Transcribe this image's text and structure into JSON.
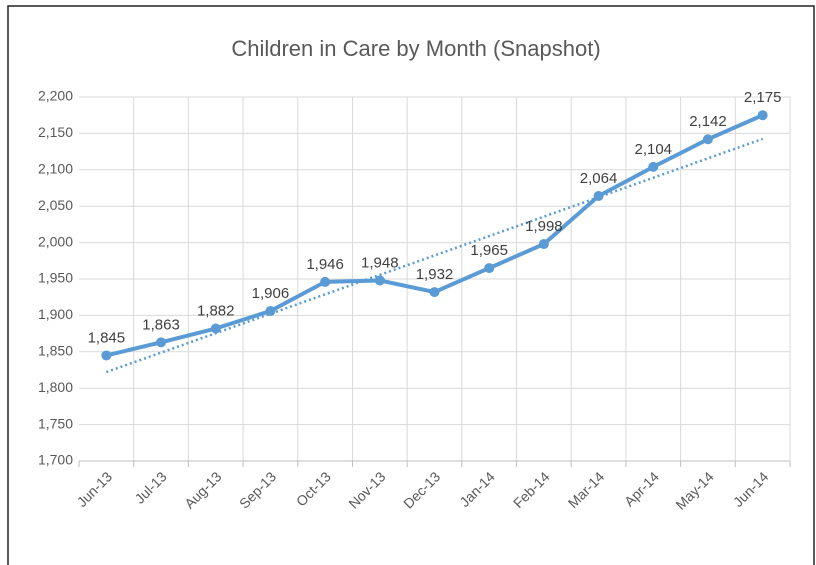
{
  "chart_data": {
    "type": "line",
    "title": "Children in Care by Month (Snapshot)",
    "categories": [
      "Jun-13",
      "Jul-13",
      "Aug-13",
      "Sep-13",
      "Oct-13",
      "Nov-13",
      "Dec-13",
      "Jan-14",
      "Feb-14",
      "Mar-14",
      "Apr-14",
      "May-14",
      "Jun-14"
    ],
    "series": [
      {
        "name": "Children in Care",
        "color": "#5b9bd5",
        "values": [
          1845,
          1863,
          1882,
          1906,
          1946,
          1948,
          1932,
          1965,
          1998,
          2064,
          2104,
          2142,
          2175
        ],
        "value_labels": [
          "1,845",
          "1,863",
          "1,882",
          "1,906",
          "1,946",
          "1,948",
          "1,932",
          "1,965",
          "1,998",
          "2,064",
          "2,104",
          "2,142",
          "2,175"
        ]
      }
    ],
    "ylim": [
      1700,
      2200
    ],
    "yticks": [
      {
        "value": 1700,
        "label": "1,700"
      },
      {
        "value": 1750,
        "label": "1,750"
      },
      {
        "value": 1800,
        "label": "1,800"
      },
      {
        "value": 1850,
        "label": "1,850"
      },
      {
        "value": 1900,
        "label": "1,900"
      },
      {
        "value": 1950,
        "label": "1,950"
      },
      {
        "value": 2000,
        "label": "2,000"
      },
      {
        "value": 2050,
        "label": "2,050"
      },
      {
        "value": 2100,
        "label": "2,100"
      },
      {
        "value": 2150,
        "label": "2,150"
      },
      {
        "value": 2200,
        "label": "2,200"
      }
    ],
    "grid": true,
    "trendline": "linear"
  }
}
